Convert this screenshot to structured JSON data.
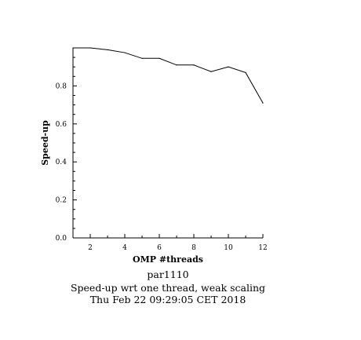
{
  "chart_data": {
    "type": "line",
    "xlabel": "OMP #threads",
    "ylabel": "Speed-up",
    "xlim": [
      1,
      12
    ],
    "ylim": [
      0.0,
      1.0
    ],
    "x_ticks": [
      2,
      4,
      6,
      8,
      10,
      12
    ],
    "y_ticks": [
      0.0,
      0.2,
      0.4,
      0.6,
      0.8
    ],
    "x_tick_labels": [
      "2",
      "4",
      "6",
      "8",
      "10",
      "12"
    ],
    "y_tick_labels": [
      "0.0",
      "0.2",
      "0.4",
      "0.6",
      "0.8"
    ],
    "series": [
      {
        "x": [
          1,
          2,
          3,
          4,
          5,
          6,
          7,
          8,
          9,
          10,
          11,
          12
        ],
        "values": [
          1.0,
          1.0,
          0.99,
          0.975,
          0.945,
          0.945,
          0.91,
          0.91,
          0.875,
          0.9,
          0.87,
          0.71
        ]
      }
    ],
    "grid": false,
    "captions": [
      "par1110",
      "Speed-up wrt one thread, weak scaling",
      "Thu Feb 22 09:29:05 CET 2018"
    ]
  },
  "colors": {
    "line": "#000000",
    "axis": "#000000"
  }
}
